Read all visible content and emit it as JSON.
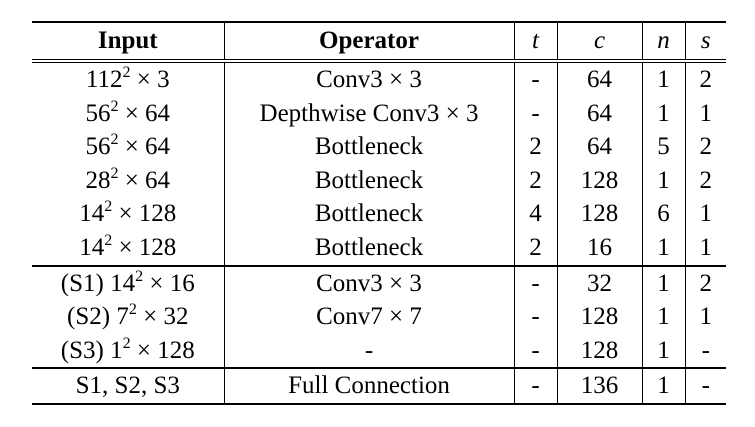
{
  "headers": {
    "input": "Input",
    "operator": "Operator",
    "t": "t",
    "c": "c",
    "n": "n",
    "s": "s"
  },
  "rows": [
    {
      "input_base": "112",
      "input_sup": "2",
      "input_rest": " × 3",
      "operator": "Conv3 × 3",
      "t": "-",
      "c": "64",
      "n": "1",
      "s": "2"
    },
    {
      "input_base": "56",
      "input_sup": "2",
      "input_rest": " × 64",
      "operator": "Depthwise Conv3 × 3",
      "t": "-",
      "c": "64",
      "n": "1",
      "s": "1"
    },
    {
      "input_base": "56",
      "input_sup": "2",
      "input_rest": " × 64",
      "operator": "Bottleneck",
      "t": "2",
      "c": "64",
      "n": "5",
      "s": "2"
    },
    {
      "input_base": "28",
      "input_sup": "2",
      "input_rest": " × 64",
      "operator": "Bottleneck",
      "t": "2",
      "c": "128",
      "n": "1",
      "s": "2"
    },
    {
      "input_base": "14",
      "input_sup": "2",
      "input_rest": " × 128",
      "operator": "Bottleneck",
      "t": "4",
      "c": "128",
      "n": "6",
      "s": "1"
    },
    {
      "input_base": "14",
      "input_sup": "2",
      "input_rest": " × 128",
      "operator": "Bottleneck",
      "t": "2",
      "c": "16",
      "n": "1",
      "s": "1"
    },
    {
      "input_base": "(S1) 14",
      "input_sup": "2",
      "input_rest": " × 16",
      "operator": "Conv3 × 3",
      "t": "-",
      "c": "32",
      "n": "1",
      "s": "2"
    },
    {
      "input_base": "(S2) 7",
      "input_sup": "2",
      "input_rest": " × 32",
      "operator": "Conv7 × 7",
      "t": "-",
      "c": "128",
      "n": "1",
      "s": "1"
    },
    {
      "input_base": "(S3) 1",
      "input_sup": "2",
      "input_rest": " × 128",
      "operator": "-",
      "t": "-",
      "c": "128",
      "n": "1",
      "s": "-"
    },
    {
      "input_base": "S1, S2, S3",
      "input_sup": "",
      "input_rest": "",
      "operator": "Full Connection",
      "t": "-",
      "c": "136",
      "n": "1",
      "s": "-"
    }
  ]
}
